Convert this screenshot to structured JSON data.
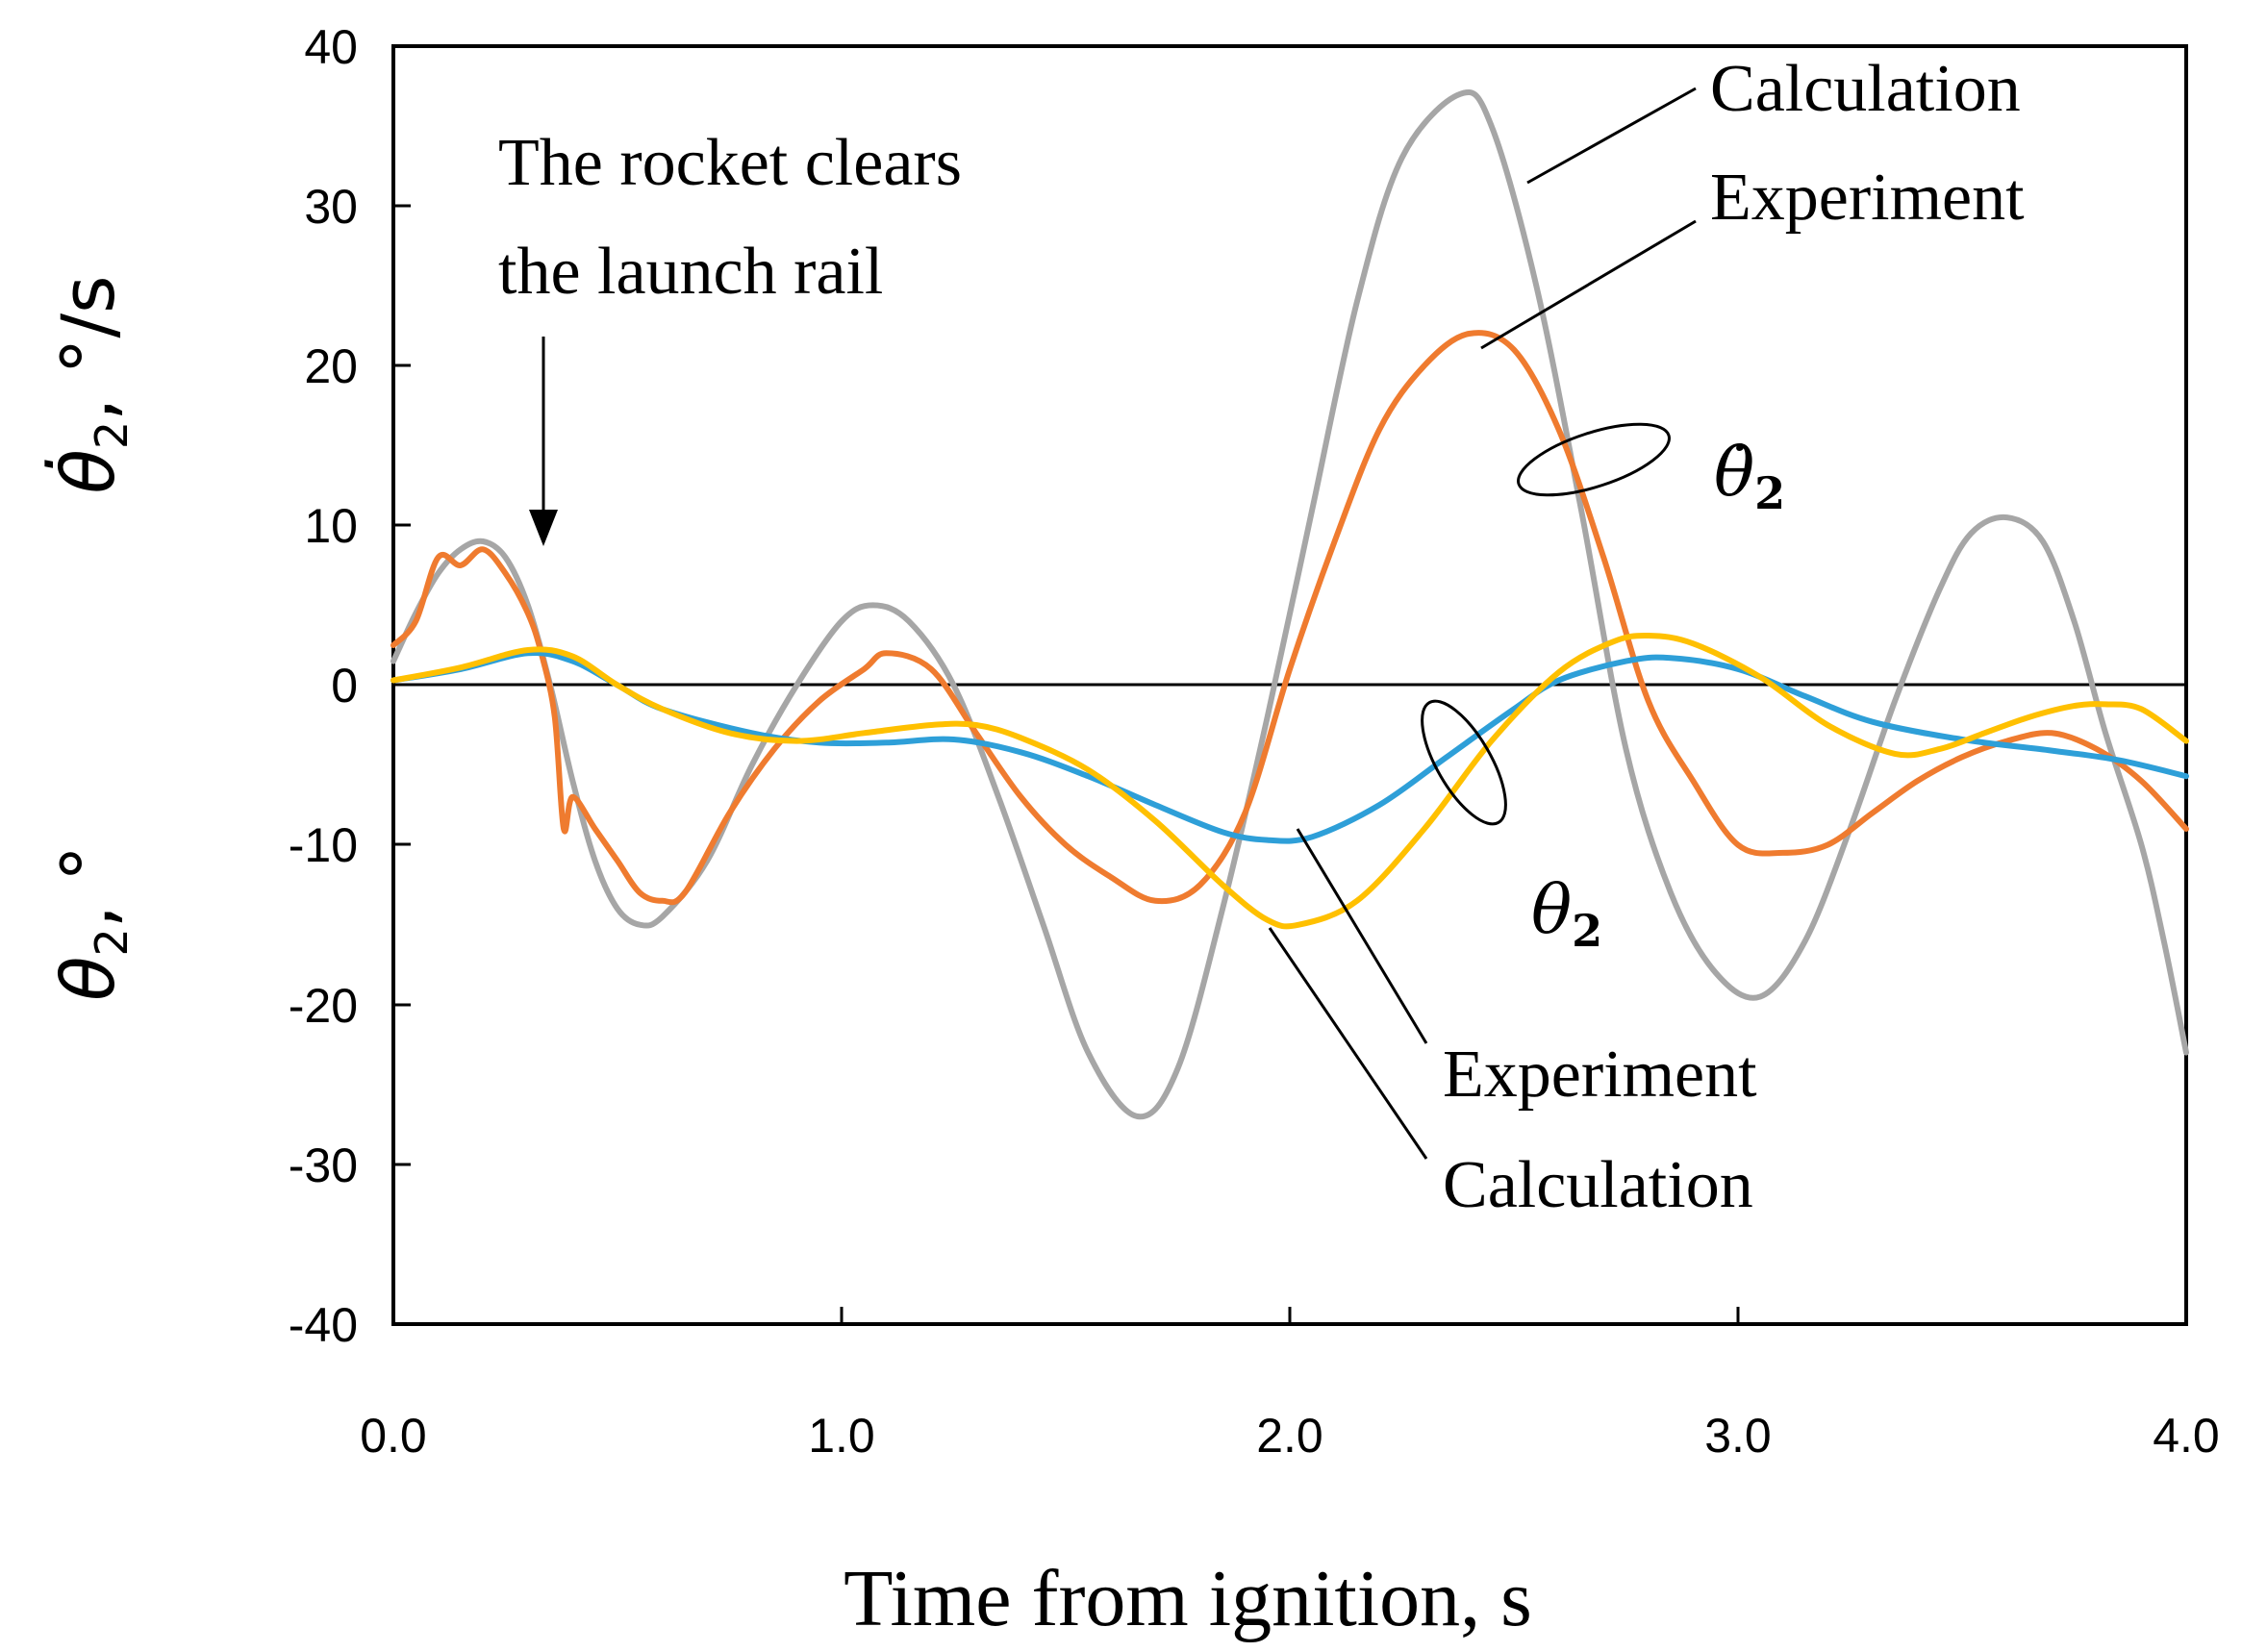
{
  "chart_data": {
    "type": "line",
    "xlabel": "Time from ignition, s",
    "ylabel_upper": {
      "symbol": "θ̇",
      "sub": "2",
      "unit": ", °/s"
    },
    "ylabel_lower": {
      "symbol": "θ",
      "sub": "2",
      "unit": ", °"
    },
    "xlim": [
      0,
      4
    ],
    "ylim": [
      -40,
      40
    ],
    "x_ticks": [
      "0.0",
      "1.0",
      "2.0",
      "3.0",
      "4.0"
    ],
    "y_ticks": [
      "40",
      "30",
      "20",
      "10",
      "0",
      "-10",
      "-20",
      "-30",
      "-40"
    ],
    "grid": false,
    "zero_line": true,
    "series": [
      {
        "name": "θ̇2 Calculation",
        "color": "#a6a6a6",
        "points": [
          [
            0.0,
            1.5
          ],
          [
            0.05,
            4.5
          ],
          [
            0.1,
            7
          ],
          [
            0.15,
            8.5
          ],
          [
            0.2,
            9
          ],
          [
            0.25,
            8
          ],
          [
            0.3,
            5
          ],
          [
            0.35,
            0
          ],
          [
            0.4,
            -6
          ],
          [
            0.45,
            -11
          ],
          [
            0.5,
            -14
          ],
          [
            0.55,
            -15
          ],
          [
            0.6,
            -14.5
          ],
          [
            0.7,
            -11
          ],
          [
            0.8,
            -5
          ],
          [
            0.9,
            0
          ],
          [
            1.0,
            4
          ],
          [
            1.07,
            5
          ],
          [
            1.15,
            4
          ],
          [
            1.25,
            0
          ],
          [
            1.35,
            -7
          ],
          [
            1.45,
            -15
          ],
          [
            1.55,
            -23
          ],
          [
            1.66,
            -27
          ],
          [
            1.75,
            -24
          ],
          [
            1.85,
            -14
          ],
          [
            1.95,
            -2
          ],
          [
            2.05,
            11
          ],
          [
            2.15,
            24
          ],
          [
            2.25,
            33
          ],
          [
            2.38,
            37
          ],
          [
            2.45,
            35
          ],
          [
            2.55,
            25
          ],
          [
            2.65,
            11
          ],
          [
            2.75,
            -4
          ],
          [
            2.85,
            -13
          ],
          [
            2.95,
            -18
          ],
          [
            3.05,
            -19.5
          ],
          [
            3.15,
            -16
          ],
          [
            3.25,
            -9
          ],
          [
            3.35,
            -1
          ],
          [
            3.45,
            6
          ],
          [
            3.52,
            9.5
          ],
          [
            3.6,
            10.5
          ],
          [
            3.68,
            9
          ],
          [
            3.75,
            4
          ],
          [
            3.82,
            -3
          ],
          [
            3.9,
            -10
          ],
          [
            3.95,
            -16
          ],
          [
            4.0,
            -23
          ]
        ]
      },
      {
        "name": "θ̇2 Experiment",
        "color": "#ef7b2f",
        "points": [
          [
            0.0,
            2.5
          ],
          [
            0.05,
            4
          ],
          [
            0.1,
            8
          ],
          [
            0.15,
            7.5
          ],
          [
            0.2,
            8.5
          ],
          [
            0.25,
            7
          ],
          [
            0.3,
            4.5
          ],
          [
            0.33,
            2
          ],
          [
            0.36,
            -2
          ],
          [
            0.38,
            -9
          ],
          [
            0.4,
            -7
          ],
          [
            0.45,
            -9
          ],
          [
            0.5,
            -11
          ],
          [
            0.55,
            -13
          ],
          [
            0.6,
            -13.5
          ],
          [
            0.65,
            -13
          ],
          [
            0.75,
            -8
          ],
          [
            0.85,
            -4
          ],
          [
            0.95,
            -1
          ],
          [
            1.05,
            1
          ],
          [
            1.1,
            2
          ],
          [
            1.2,
            1
          ],
          [
            1.3,
            -3
          ],
          [
            1.4,
            -7
          ],
          [
            1.5,
            -10
          ],
          [
            1.6,
            -12
          ],
          [
            1.7,
            -13.5
          ],
          [
            1.8,
            -12.5
          ],
          [
            1.9,
            -8
          ],
          [
            2.0,
            1
          ],
          [
            2.1,
            9
          ],
          [
            2.2,
            16
          ],
          [
            2.3,
            20
          ],
          [
            2.4,
            22
          ],
          [
            2.5,
            21
          ],
          [
            2.6,
            16
          ],
          [
            2.7,
            8
          ],
          [
            2.8,
            -1
          ],
          [
            2.9,
            -6
          ],
          [
            3.0,
            -10
          ],
          [
            3.1,
            -10.5
          ],
          [
            3.2,
            -10
          ],
          [
            3.3,
            -8
          ],
          [
            3.4,
            -6
          ],
          [
            3.5,
            -4.5
          ],
          [
            3.6,
            -3.5
          ],
          [
            3.7,
            -3
          ],
          [
            3.8,
            -4
          ],
          [
            3.9,
            -6
          ],
          [
            4.0,
            -9
          ]
        ]
      },
      {
        "name": "θ2 Experiment",
        "color": "#2e9fd8",
        "points": [
          [
            0.0,
            0.3
          ],
          [
            0.15,
            1
          ],
          [
            0.3,
            2
          ],
          [
            0.4,
            1.5
          ],
          [
            0.5,
            0
          ],
          [
            0.6,
            -1.5
          ],
          [
            0.8,
            -3
          ],
          [
            0.95,
            -3.6
          ],
          [
            1.1,
            -3.6
          ],
          [
            1.25,
            -3.4
          ],
          [
            1.4,
            -4.2
          ],
          [
            1.55,
            -5.7
          ],
          [
            1.7,
            -7.5
          ],
          [
            1.85,
            -9.2
          ],
          [
            1.95,
            -9.7
          ],
          [
            2.05,
            -9.5
          ],
          [
            2.2,
            -7.5
          ],
          [
            2.35,
            -4.5
          ],
          [
            2.5,
            -1.5
          ],
          [
            2.6,
            0.3
          ],
          [
            2.75,
            1.5
          ],
          [
            2.85,
            1.7
          ],
          [
            3.0,
            1
          ],
          [
            3.15,
            -0.7
          ],
          [
            3.3,
            -2.3
          ],
          [
            3.5,
            -3.4
          ],
          [
            3.7,
            -4.1
          ],
          [
            3.85,
            -4.7
          ],
          [
            4.0,
            -5.7
          ]
        ]
      },
      {
        "name": "θ2 Calculation",
        "color": "#ffc000",
        "points": [
          [
            0.0,
            0.3
          ],
          [
            0.15,
            1.1
          ],
          [
            0.3,
            2.2
          ],
          [
            0.4,
            1.8
          ],
          [
            0.5,
            0
          ],
          [
            0.6,
            -1.5
          ],
          [
            0.75,
            -3
          ],
          [
            0.9,
            -3.5
          ],
          [
            1.05,
            -3
          ],
          [
            1.2,
            -2.5
          ],
          [
            1.3,
            -2.5
          ],
          [
            1.4,
            -3.3
          ],
          [
            1.55,
            -5.3
          ],
          [
            1.7,
            -8.5
          ],
          [
            1.85,
            -12.5
          ],
          [
            1.95,
            -14.7
          ],
          [
            2.02,
            -15
          ],
          [
            2.15,
            -13.5
          ],
          [
            2.3,
            -9
          ],
          [
            2.45,
            -3.5
          ],
          [
            2.6,
            0.8
          ],
          [
            2.72,
            2.7
          ],
          [
            2.8,
            3.1
          ],
          [
            2.9,
            2.6
          ],
          [
            3.05,
            0.5
          ],
          [
            3.2,
            -2.5
          ],
          [
            3.35,
            -4.3
          ],
          [
            3.45,
            -4
          ],
          [
            3.55,
            -3
          ],
          [
            3.65,
            -2
          ],
          [
            3.75,
            -1.3
          ],
          [
            3.82,
            -1.2
          ],
          [
            3.9,
            -1.5
          ],
          [
            4.0,
            -3.5
          ]
        ]
      }
    ],
    "annotations": {
      "rail_clear_line1": "The rocket clears",
      "rail_clear_line2": "the launch rail",
      "upper_calc": "Calculation",
      "upper_exp": "Experiment",
      "lower_exp": "Experiment",
      "lower_calc": "Calculation",
      "rate_symbol": "θ̇",
      "rate_sub": "2",
      "angle_symbol": "θ",
      "angle_sub": "2"
    }
  }
}
